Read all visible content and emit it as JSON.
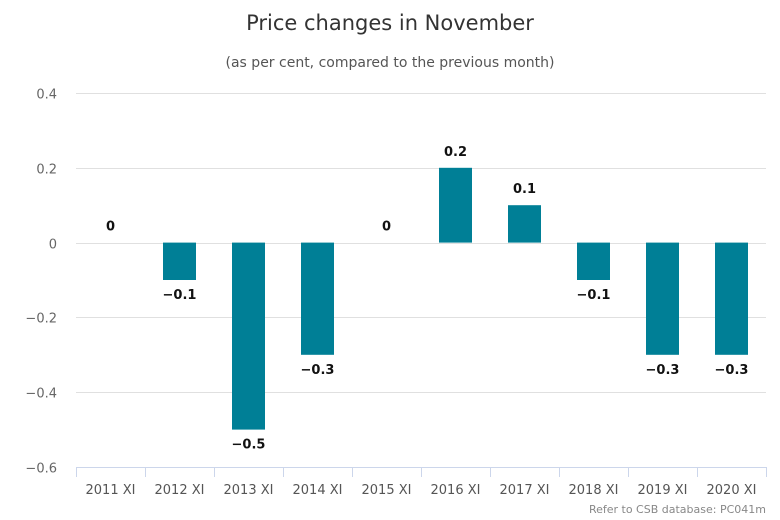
{
  "chart_data": {
    "type": "bar",
    "title": "Price changes in November",
    "subtitle": "(as per cent, compared to the previous month)",
    "xlabel": "",
    "ylabel": "",
    "categories": [
      "2011 XI",
      "2012 XI",
      "2013 XI",
      "2014 XI",
      "2015 XI",
      "2016 XI",
      "2017 XI",
      "2018 XI",
      "2019 XI",
      "2020 XI"
    ],
    "values": [
      0,
      -0.1,
      -0.5,
      -0.3,
      0,
      0.2,
      0.1,
      -0.1,
      -0.3,
      -0.3
    ],
    "data_labels": [
      "0",
      "−0.1",
      "−0.5",
      "−0.3",
      "0",
      "0.2",
      "0.1",
      "−0.1",
      "−0.3",
      "−0.3"
    ],
    "ylim": [
      -0.6,
      0.4
    ],
    "yticks": [
      0.4,
      0.2,
      0,
      -0.2,
      -0.4,
      -0.6
    ],
    "ytick_labels": [
      "0.4",
      "0.2",
      "0",
      "−0.2",
      "−0.4",
      "−0.6"
    ],
    "grid": true,
    "legend": "none",
    "bar_color": "#007f96",
    "credit": "Refer to CSB database: PC041m"
  }
}
